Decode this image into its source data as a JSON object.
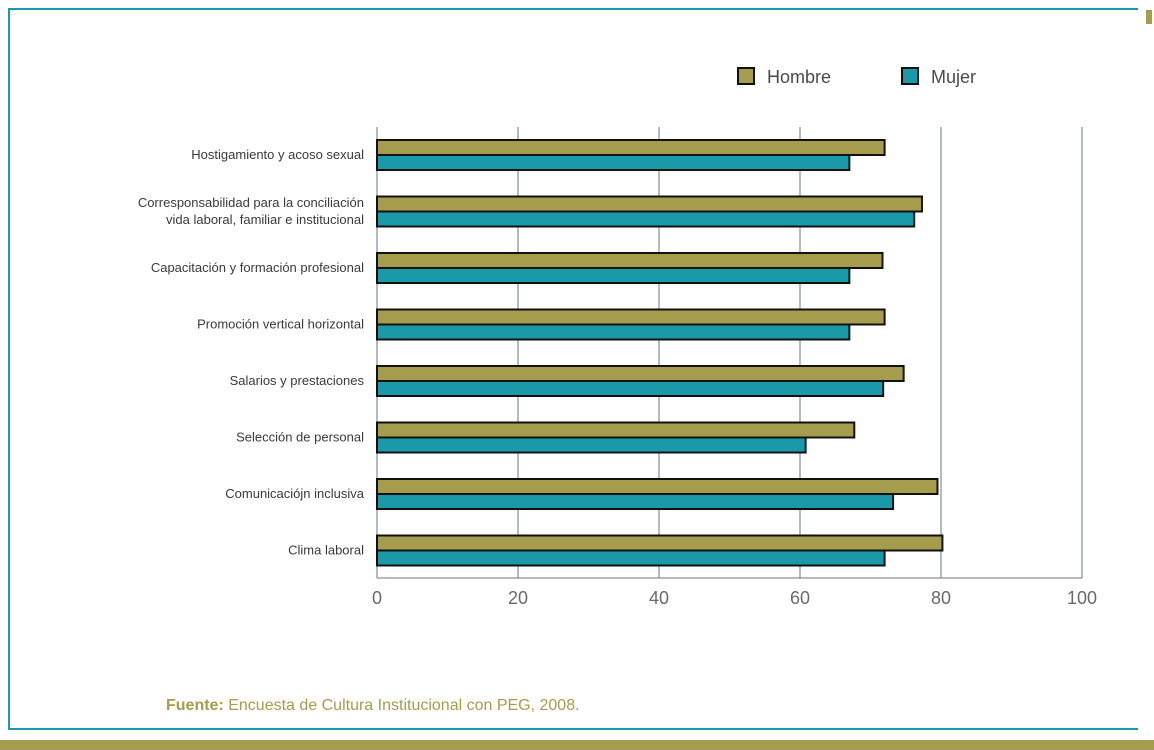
{
  "chart_data": {
    "type": "bar",
    "orientation": "horizontal",
    "categories": [
      [
        "Hostigamiento y acoso sexual"
      ],
      [
        "Corresponsabilidad para la conciliación",
        "vida laboral, familiar e institucional"
      ],
      [
        "Capacitación y formación profesional"
      ],
      [
        "Promoción vertical horizontal"
      ],
      [
        "Salarios y prestaciones"
      ],
      [
        "Selección de personal"
      ],
      [
        "Comunicacióјn inclusiva"
      ],
      [
        "Clima laboral"
      ]
    ],
    "series": [
      {
        "name": "Hombre",
        "color": "#a69c4e",
        "values": [
          72,
          77.3,
          71.7,
          72,
          74.7,
          67.7,
          79.5,
          80.2
        ]
      },
      {
        "name": "Mujer",
        "color": "#1a9aa8",
        "values": [
          67,
          76.2,
          67,
          67,
          71.8,
          60.8,
          73.2,
          72
        ]
      }
    ],
    "xlim": [
      0,
      100
    ],
    "xticks": [
      0,
      20,
      40,
      60,
      80,
      100
    ],
    "grid": "vertical",
    "legend_position": "top-right"
  },
  "source": {
    "label": "Fuente:",
    "text": " Encuesta de Cultura Institucional con PEG, 2008."
  }
}
